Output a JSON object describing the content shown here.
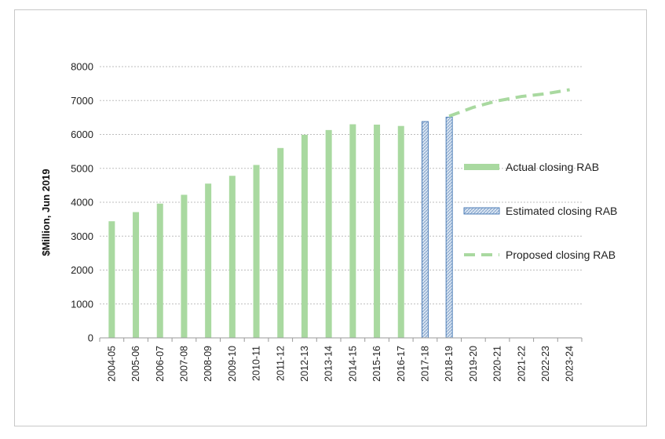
{
  "chart_data": {
    "type": "bar",
    "ylabel": "$Million, Jun 2019",
    "ylim": [
      0,
      8000
    ],
    "yticks": [
      0,
      1000,
      2000,
      3000,
      4000,
      5000,
      6000,
      7000,
      8000
    ],
    "grid": "horizontal dotted",
    "legend_position": "right",
    "categories": [
      "2004-05",
      "2005-06",
      "2006-07",
      "2007-08",
      "2008-09",
      "2009-10",
      "2010-11",
      "2011-12",
      "2012-13",
      "2013-14",
      "2014-15",
      "2015-16",
      "2016-17",
      "2017-18",
      "2018-19",
      "2019-20",
      "2020-21",
      "2021-22",
      "2022-23",
      "2023-24"
    ],
    "series": [
      {
        "name": "Actual closing RAB",
        "kind": "bar",
        "color": "#a9d9a0",
        "values": [
          3440,
          3710,
          3960,
          4220,
          4550,
          4780,
          5100,
          5600,
          5990,
          6130,
          6300,
          6290,
          6250,
          null,
          null,
          null,
          null,
          null,
          null,
          null
        ]
      },
      {
        "name": "Estimated closing RAB",
        "kind": "bar-hatched",
        "color": "#4f7fb8",
        "values": [
          null,
          null,
          null,
          null,
          null,
          null,
          null,
          null,
          null,
          null,
          null,
          null,
          null,
          6380,
          6510,
          null,
          null,
          null,
          null,
          null
        ]
      },
      {
        "name": "Proposed closing RAB",
        "kind": "dashed-line",
        "color": "#a9d9a0",
        "values": [
          null,
          null,
          null,
          null,
          null,
          null,
          null,
          null,
          null,
          null,
          null,
          null,
          null,
          null,
          6540,
          6800,
          6990,
          7120,
          7200,
          7320
        ]
      }
    ]
  }
}
